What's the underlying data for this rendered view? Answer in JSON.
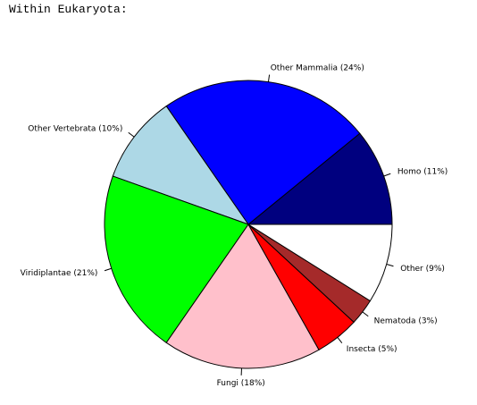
{
  "header": {
    "title": "Within Eukaryota:"
  },
  "chart_data": {
    "type": "pie",
    "title": "",
    "slices": [
      {
        "label": "Homo (11%)",
        "value": 11,
        "color": "#00007f"
      },
      {
        "label": "Other Mammalia (24%)",
        "value": 24,
        "color": "#0000ff"
      },
      {
        "label": "Other Vertebrata (10%)",
        "value": 10,
        "color": "#add8e6"
      },
      {
        "label": "Viridiplantae (21%)",
        "value": 21,
        "color": "#00ff00"
      },
      {
        "label": "Fungi (18%)",
        "value": 18,
        "color": "#ffc0cb"
      },
      {
        "label": "Insecta (5%)",
        "value": 5,
        "color": "#ff0000"
      },
      {
        "label": "Nematoda (3%)",
        "value": 3,
        "color": "#a52a2a"
      },
      {
        "label": "Other (9%)",
        "value": 9,
        "color": "#ffffff"
      }
    ],
    "start_angle_deg": 0,
    "direction": "counterclockwise",
    "legend": "none"
  }
}
